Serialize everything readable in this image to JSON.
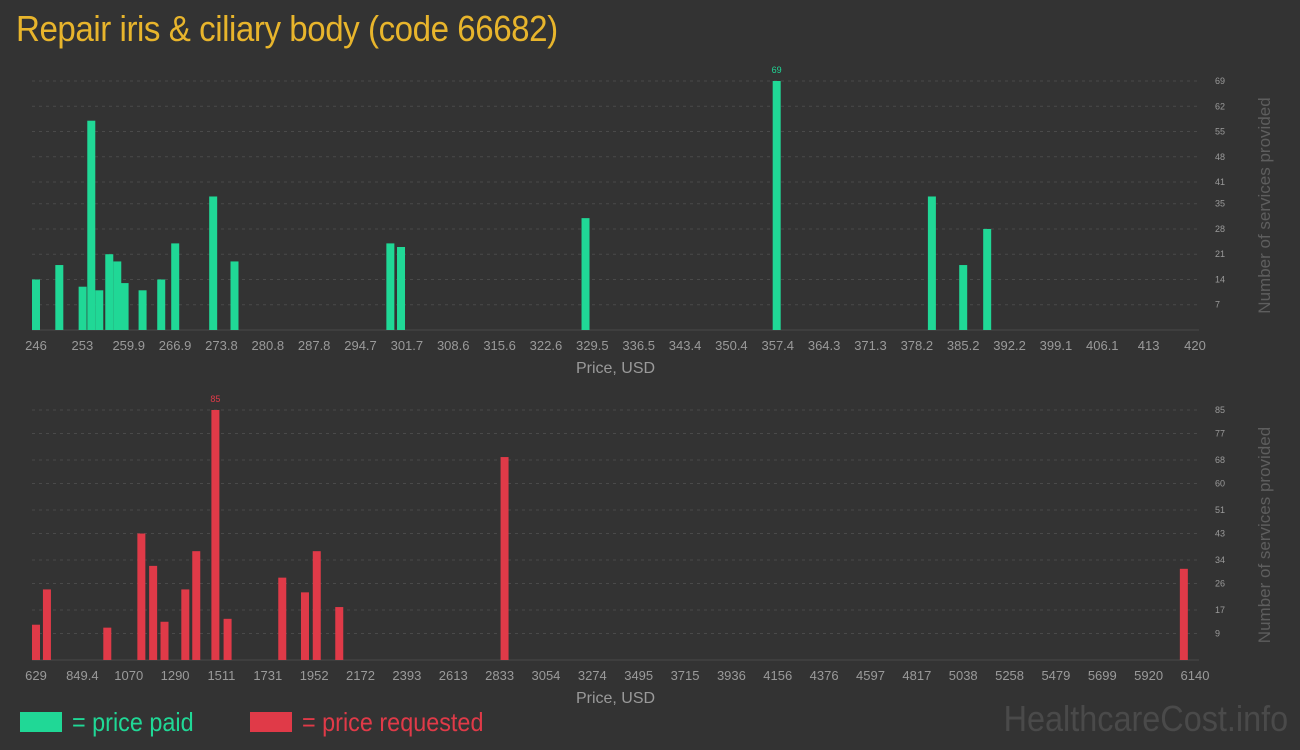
{
  "title": "Repair iris & ciliary body (code 66682)",
  "colors": {
    "background": "#333333",
    "title": "#e8b52c",
    "paid": "#20d896",
    "requested": "#e03a48",
    "axis_text": "#9a9a9a",
    "grid": "#4a4a4a"
  },
  "legend": {
    "paid_label": "= price paid",
    "requested_label": "= price requested"
  },
  "watermark": "HealthcareCost.info",
  "chart_data": [
    {
      "type": "bar",
      "series_color": "paid",
      "xlabel": "Price, USD",
      "ylabel": "Number of services provided",
      "xlim": [
        246,
        420
      ],
      "ylim": [
        0,
        69
      ],
      "x_ticks": [
        "246",
        "253",
        "259.9",
        "266.9",
        "273.8",
        "280.8",
        "287.8",
        "294.7",
        "301.7",
        "308.6",
        "315.6",
        "322.6",
        "329.5",
        "336.5",
        "343.4",
        "350.4",
        "357.4",
        "364.3",
        "371.3",
        "378.2",
        "385.2",
        "392.2",
        "399.1",
        "406.1",
        "413",
        "420"
      ],
      "y_ticks": [
        "7",
        "14",
        "21",
        "28",
        "35",
        "41",
        "48",
        "55",
        "62",
        "69"
      ],
      "peak_label": "69",
      "x": [
        246,
        249.5,
        253,
        254.3,
        255.5,
        257,
        258.2,
        259.3,
        262,
        264.8,
        266.9,
        272.6,
        275.8,
        299.2,
        300.8,
        328.5,
        357.2,
        380.5,
        385.2,
        388.8,
        390.8,
        411.5
      ],
      "values": [
        14,
        18,
        12,
        58,
        11,
        21,
        19,
        13,
        11,
        14,
        24,
        37,
        19,
        24,
        23,
        31,
        69,
        37,
        18,
        28,
        0,
        0
      ]
    },
    {
      "type": "bar",
      "series_color": "requested",
      "xlabel": "Price, USD",
      "ylabel": "Number of services provided",
      "xlim": [
        629,
        6140
      ],
      "ylim": [
        0,
        85
      ],
      "x_ticks": [
        "629",
        "849.4",
        "1070",
        "1290",
        "1511",
        "1731",
        "1952",
        "2172",
        "2393",
        "2613",
        "2833",
        "3054",
        "3274",
        "3495",
        "3715",
        "3936",
        "4156",
        "4376",
        "4597",
        "4817",
        "5038",
        "5258",
        "5479",
        "5699",
        "5920",
        "6140"
      ],
      "y_ticks": [
        "9",
        "17",
        "26",
        "34",
        "43",
        "51",
        "60",
        "68",
        "77",
        "85"
      ],
      "peak_label": "85",
      "x": [
        629,
        681,
        968,
        1130,
        1186,
        1240,
        1339,
        1391,
        1482,
        1540,
        1800,
        1908,
        1964,
        2071,
        2857,
        6087
      ],
      "values": [
        12,
        24,
        11,
        43,
        32,
        13,
        24,
        37,
        85,
        14,
        28,
        23,
        37,
        18,
        69,
        31
      ]
    }
  ]
}
